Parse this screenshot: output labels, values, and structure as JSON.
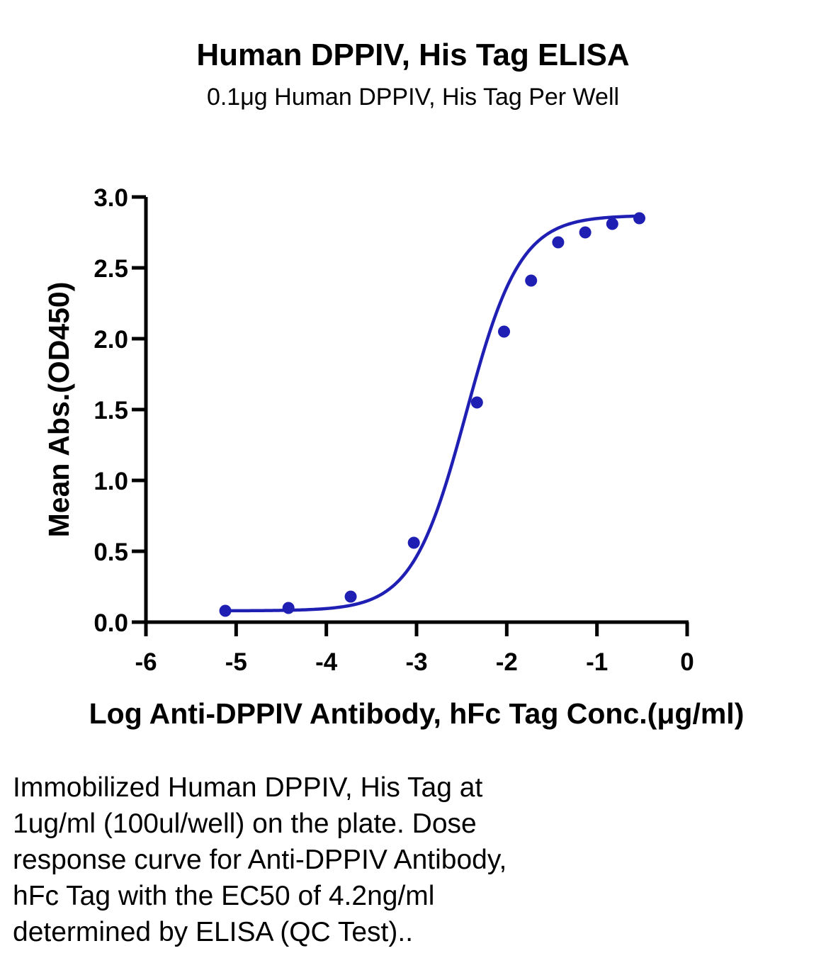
{
  "title": "Human DPPIV, His Tag ELISA",
  "subtitle": "0.1μg Human DPPIV, His Tag Per Well",
  "caption": [
    "Immobilized Human DPPIV, His Tag at",
    "1ug/ml (100ul/well) on the plate. Dose",
    "response curve for Anti-DPPIV Antibody,",
    "hFc Tag with the EC50 of 4.2ng/ml",
    "determined by ELISA (QC Test).."
  ],
  "colors": {
    "series": "#1f1fb4",
    "axis": "#000000"
  },
  "chart_data": {
    "type": "scatter",
    "title": "Human DPPIV, His Tag ELISA",
    "subtitle": "0.1μg Human DPPIV, His Tag Per Well",
    "xlabel": "Log Anti-DPPIV Antibody, hFc Tag Conc.(μg/ml)",
    "ylabel": "Mean Abs.(OD450)",
    "xlim": [
      -6,
      0
    ],
    "ylim": [
      0,
      3.0
    ],
    "xticks": [
      -6,
      -5,
      -4,
      -3,
      -2,
      -1,
      0
    ],
    "xtick_labels": [
      "-6",
      "-5",
      "-4",
      "-3",
      "-2",
      "-1",
      "0"
    ],
    "yticks": [
      0,
      0.5,
      1.0,
      1.5,
      2.0,
      2.5,
      3.0
    ],
    "ytick_labels": [
      "0.0",
      "0.5",
      "1.0",
      "1.5",
      "2.0",
      "2.5",
      "3.0"
    ],
    "grid": false,
    "legend": "none",
    "fit": "four-parameter logistic curve",
    "series": [
      {
        "x": [
          -5.12,
          -4.42,
          -3.73,
          -3.03,
          -2.33,
          -2.03,
          -1.73,
          -1.43,
          -1.13,
          -0.83,
          -0.53
        ],
        "y": [
          0.08,
          0.1,
          0.18,
          0.56,
          1.55,
          2.05,
          2.41,
          2.68,
          2.75,
          2.81,
          2.85
        ]
      }
    ]
  }
}
